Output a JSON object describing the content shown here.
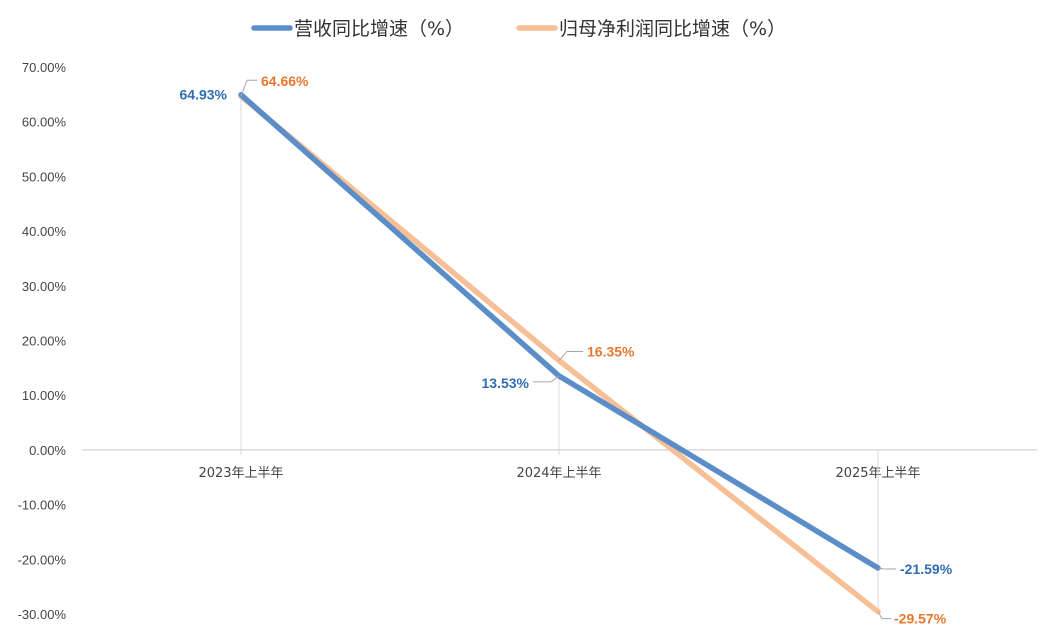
{
  "chart_data": {
    "type": "line",
    "categories": [
      "2023年上半年",
      "2024年上半年",
      "2025年上半年"
    ],
    "series": [
      {
        "name": "营收同比增速（%）",
        "values": [
          64.93,
          13.53,
          -21.59
        ],
        "labels": [
          "64.93%",
          "13.53%",
          "-21.59%"
        ],
        "color": "#5b8ec8",
        "label_color": "#2f6db5"
      },
      {
        "name": "归母净利润同比增速（%）",
        "values": [
          64.66,
          16.35,
          -29.57
        ],
        "labels": [
          "64.66%",
          "16.35%",
          "-29.57%"
        ],
        "color": "#f6bf96",
        "label_color": "#e8772e"
      }
    ],
    "ylim": [
      -30,
      70
    ],
    "yticks": [
      "70.00%",
      "60.00%",
      "50.00%",
      "40.00%",
      "30.00%",
      "20.00%",
      "10.00%",
      "0.00%",
      "-10.00%",
      "-20.00%",
      "-30.00%"
    ],
    "legend_position": "top",
    "grid": false
  }
}
